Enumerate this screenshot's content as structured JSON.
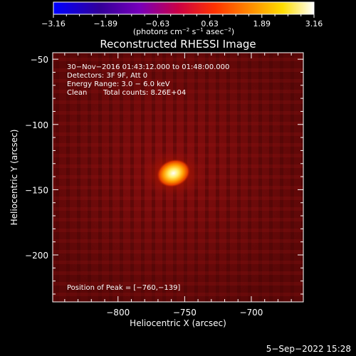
{
  "colorbar": {
    "ticks": [
      "−3.16",
      "−1.89",
      "−0.63",
      "0.63",
      "1.89",
      "3.16"
    ],
    "unit_label": {
      "pre": "(photons cm",
      "exp1": "−2",
      "mid1": " s",
      "exp2": "−1",
      "mid2": " asec",
      "exp3": "−2",
      "post": ")"
    }
  },
  "title": "Reconstructed RHESSI Image",
  "annotations": {
    "line1": "30−Nov−2016 01:43:12.000 to 01:48:00.000",
    "line2": "Detectors: 3F 9F, Att 0",
    "line3": "Energy Range: 3.0 − 6.0 keV",
    "line4_left": "Clean",
    "line4_right": "Total counts: 8.26E+04",
    "peak": "Position of Peak = [−760,−139]"
  },
  "footer": {
    "date": "5−Sep−2022 15:28"
  },
  "chart_data": {
    "type": "heatmap",
    "title": "Reconstructed RHESSI Image",
    "xlabel": "Heliocentric X (arcsec)",
    "ylabel": "Heliocentric Y (arcsec)",
    "xlim": [
      -849,
      -661
    ],
    "ylim": [
      -236,
      -45
    ],
    "xticks": [
      -800,
      -750,
      -700
    ],
    "yticks": [
      -50,
      -100,
      -150,
      -200
    ],
    "xtick_labels": [
      "−800",
      "−750",
      "−700"
    ],
    "ytick_labels": [
      "−50",
      "−100",
      "−150",
      "−200"
    ],
    "colorbar_range": [
      -3.16,
      3.16
    ],
    "source": {
      "x": -760,
      "y": -139,
      "label": "peak"
    },
    "colors": {
      "background": "#000000",
      "colormap": [
        "#0000ff",
        "#330099",
        "#7700bb",
        "#cc0044",
        "#ff3300",
        "#ff8800",
        "#ffdd00",
        "#ffffff"
      ]
    }
  }
}
